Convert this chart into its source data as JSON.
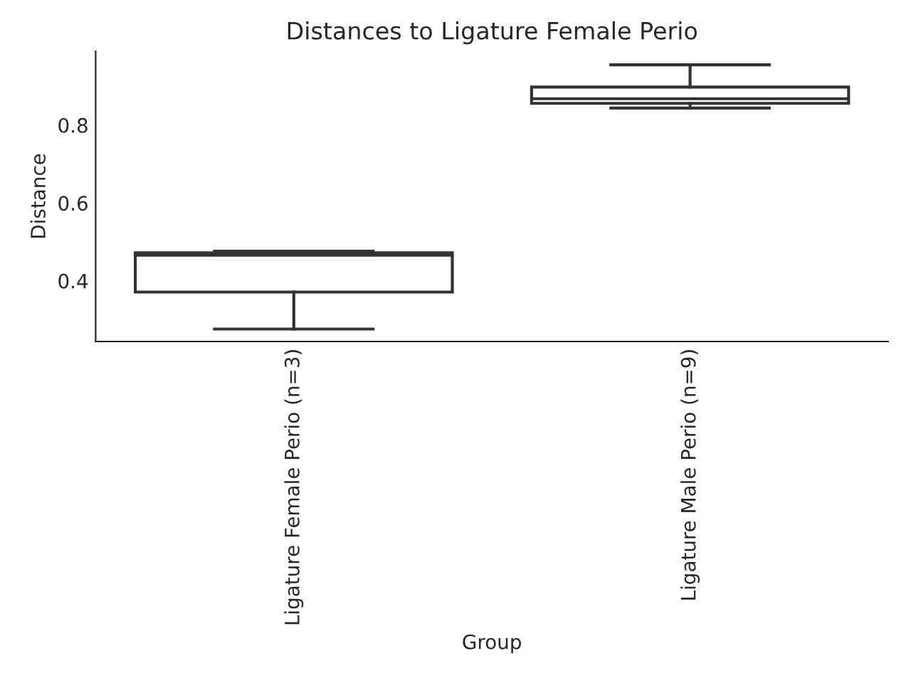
{
  "chart_data": {
    "type": "box",
    "title": "Distances to Ligature Female Perio",
    "xlabel": "Group",
    "ylabel": "Distance",
    "categories": [
      "Ligature Female Perio (n=3)",
      "Ligature Male Perio (n=9)"
    ],
    "boxes": [
      {
        "low": 0.276,
        "q1": 0.371,
        "median": 0.466,
        "q3": 0.472,
        "high": 0.476
      },
      {
        "low": 0.844,
        "q1": 0.856,
        "median": 0.868,
        "q3": 0.898,
        "high": 0.955
      }
    ],
    "color": "#333333",
    "ylim": [
      0.244,
      0.99
    ],
    "yticks": [
      0.4,
      0.6,
      0.8
    ],
    "grid": false
  }
}
